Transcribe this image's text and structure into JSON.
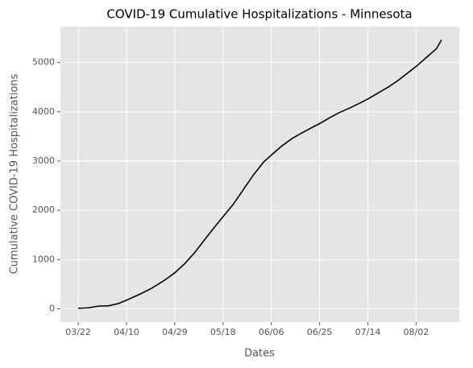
{
  "chart_data": {
    "type": "line",
    "title": "COVID-19 Cumulative Hospitalizations - Minnesota",
    "xlabel": "Dates",
    "ylabel": "Cumulative COVID-19 Hospitalizations",
    "x": [
      "03/22",
      "03/26",
      "03/30",
      "04/03",
      "04/07",
      "04/10",
      "04/15",
      "04/20",
      "04/25",
      "04/29",
      "05/03",
      "05/07",
      "05/11",
      "05/15",
      "05/18",
      "05/22",
      "05/26",
      "05/30",
      "06/03",
      "06/06",
      "06/10",
      "06/14",
      "06/18",
      "06/22",
      "06/25",
      "06/29",
      "07/03",
      "07/07",
      "07/11",
      "07/14",
      "07/18",
      "07/22",
      "07/26",
      "07/30",
      "08/02",
      "08/06",
      "08/10",
      "08/12"
    ],
    "series": [
      {
        "name": "Hospitalizations",
        "color": "#000000",
        "values": [
          10,
          20,
          55,
          60,
          110,
          175,
          290,
          420,
          580,
          730,
          920,
          1150,
          1420,
          1680,
          1870,
          2120,
          2420,
          2720,
          2980,
          3120,
          3300,
          3450,
          3570,
          3680,
          3760,
          3880,
          3990,
          4080,
          4180,
          4260,
          4380,
          4500,
          4640,
          4800,
          4920,
          5100,
          5280,
          5460
        ]
      }
    ],
    "xlim": [
      "03/15",
      "08/19"
    ],
    "xticks": [
      "03/22",
      "04/10",
      "04/29",
      "05/18",
      "06/06",
      "06/25",
      "07/14",
      "08/02"
    ],
    "ylim": [
      -270,
      5730
    ],
    "yticks": [
      0,
      1000,
      2000,
      3000,
      4000,
      5000
    ],
    "grid": true
  }
}
